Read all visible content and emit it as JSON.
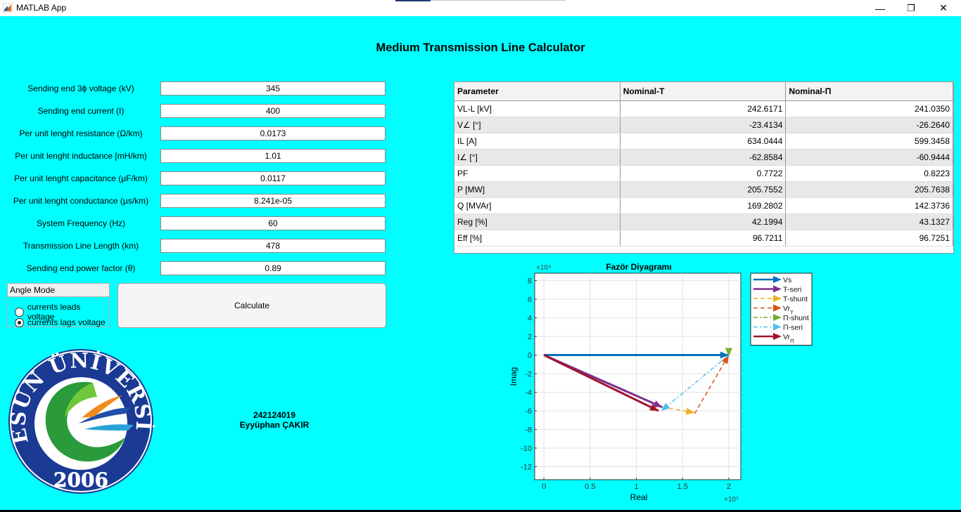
{
  "window": {
    "title": "MATLAB App",
    "minimize_glyph": "—",
    "maximize_glyph": "❐",
    "close_glyph": "✕"
  },
  "main_title": "Medium Transmission Line Calculator",
  "inputs": [
    {
      "label": "Sending end 3ϕ voltage (kV)",
      "value": "345"
    },
    {
      "label": "Sending end current (I)",
      "value": "400"
    },
    {
      "label": "Per unit lenght resistance (Ω/km)",
      "value": "0.0173"
    },
    {
      "label": "Per unit lenght inductance [mH/km)",
      "value": "1.01"
    },
    {
      "label": "Per unit lenght capacitance (μF/km)",
      "value": "0.0117"
    },
    {
      "label": "Per unit lenght conductance (μs/km)",
      "value": "8.241e-05"
    },
    {
      "label": "System Frequency (Hz)",
      "value": "60"
    },
    {
      "label": "Transmission Line Length (km)",
      "value": "478"
    },
    {
      "label": "Sending end power factor (θ)",
      "value": "0.89"
    }
  ],
  "angle_mode": {
    "title": "Angle Mode",
    "options": [
      {
        "label": "currents leads voltage",
        "selected": false
      },
      {
        "label": "currents lags voltage",
        "selected": true
      }
    ]
  },
  "calculate_label": "Calculate",
  "results": {
    "headers": [
      "Parameter",
      "Nominal-T",
      "Nominal-Π"
    ],
    "rows": [
      [
        "VL-L [kV]",
        "242.6171",
        "241.0350"
      ],
      [
        "V∠ [°]",
        "-23.4134",
        "-26.2640"
      ],
      [
        "IL [A]",
        "634.0444",
        "599.3458"
      ],
      [
        "I∠ [°]",
        "-62.8584",
        "-60.9444"
      ],
      [
        "PF",
        "0.7722",
        "0.8223"
      ],
      [
        "P [MW]",
        "205.7552",
        "205.7638"
      ],
      [
        "Q [MVAr]",
        "169.2802",
        "142.3736"
      ],
      [
        "Reg [%]",
        "42.1994",
        "43.1327"
      ],
      [
        "Eff [%]",
        "96.7211",
        "96.7251"
      ]
    ]
  },
  "student": {
    "id": "242124019",
    "name": "Eyyüphan ÇAKIR"
  },
  "logo": {
    "text": "GİRESUN ÜNİVERSİTESİ",
    "year": "2006"
  },
  "chart_data": {
    "type": "line",
    "title": "Fazör Diyagramı",
    "xlabel": "Real",
    "ylabel": "Imag",
    "x_multiplier": "×10⁵",
    "y_multiplier": "×10⁴",
    "xlim": [
      -0.1,
      2.13
    ],
    "ylim": [
      -13.4,
      8.8
    ],
    "xticks": [
      "0",
      "0.5",
      "1",
      "1.5",
      "2"
    ],
    "yticks": [
      "8",
      "6",
      "4",
      "2",
      "0",
      "-2",
      "-4",
      "-6",
      "-8",
      "-10",
      "-12"
    ],
    "grid": true,
    "legend_position": "outside-right",
    "series": [
      {
        "name": "Vs",
        "color": "#0072bd",
        "style": "solid",
        "width": 3,
        "points": [
          [
            0,
            0
          ],
          [
            2.0,
            0
          ]
        ]
      },
      {
        "name": "T-seri",
        "color": "#7e2f8e",
        "style": "solid",
        "width": 3,
        "points": [
          [
            0,
            0
          ],
          [
            1.28,
            -5.6
          ]
        ]
      },
      {
        "name": "T-shunt",
        "color": "#edb120",
        "style": "dashed",
        "width": 1.5,
        "points": [
          [
            1.28,
            -5.6
          ],
          [
            1.63,
            -6.2
          ]
        ]
      },
      {
        "name": "Vr",
        "sub": "T",
        "color": "#d95319",
        "style": "dashed",
        "width": 1.5,
        "points": [
          [
            1.63,
            -6.3
          ],
          [
            2.0,
            0
          ]
        ]
      },
      {
        "name": "Π-shunt",
        "color": "#77ac30",
        "style": "dashdot",
        "width": 1.5,
        "points": [
          [
            2.0,
            0
          ],
          [
            2.0,
            -0.15
          ]
        ]
      },
      {
        "name": "Π-seri",
        "color": "#4dbeee",
        "style": "dashdot",
        "width": 1.5,
        "points": [
          [
            2.0,
            0
          ],
          [
            1.27,
            -6.0
          ]
        ]
      },
      {
        "name": "Vr",
        "sub": "Π",
        "color": "#a2142f",
        "style": "solid",
        "width": 3,
        "points": [
          [
            0,
            0
          ],
          [
            1.24,
            -6.0
          ]
        ]
      }
    ]
  }
}
